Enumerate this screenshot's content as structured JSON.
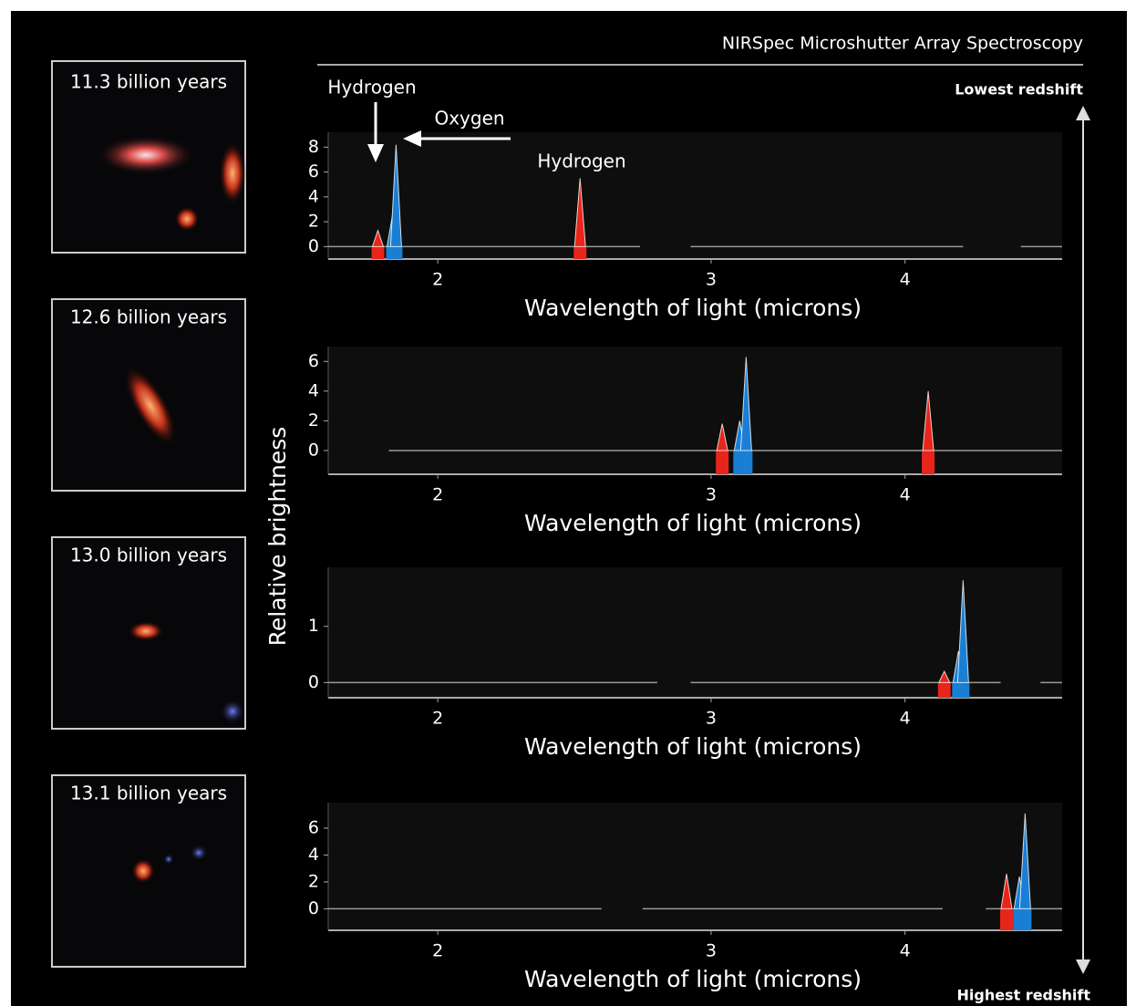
{
  "header": {
    "title": "NIRSpec Microshutter Array Spectroscopy",
    "top_label": "Lowest redshift",
    "bottom_label": "Highest redshift",
    "y_label": "Relative brightness"
  },
  "images": [
    {
      "label": "11.3 billion years"
    },
    {
      "label": "12.6 billion years"
    },
    {
      "label": "13.0 billion years"
    },
    {
      "label": "13.1 billion years"
    }
  ],
  "chart_data": [
    {
      "type": "spectrum",
      "xlabel": "Wavelength of light (microns)",
      "xlog": true,
      "xlim": [
        1.7,
        5.05
      ],
      "xticks": [
        2,
        3,
        4
      ],
      "ylim": [
        -1,
        9.2
      ],
      "yticks": [
        0,
        2,
        4,
        6,
        8
      ],
      "annotations": [
        "Hydrogen",
        "Oxygen",
        "Hydrogen"
      ],
      "continuum": [
        [
          1.7,
          2.7
        ],
        [
          2.91,
          4.36
        ],
        [
          4.75,
          5.05
        ]
      ],
      "peaks": [
        {
          "x": 1.83,
          "value": 1.3,
          "color": "#e8251b"
        },
        {
          "x": 1.87,
          "value": 2.5,
          "color": "#1a7fd4"
        },
        {
          "x": 1.88,
          "value": 8.2,
          "color": "#1a7fd4"
        },
        {
          "x": 2.47,
          "value": 5.5,
          "color": "#e8251b"
        }
      ]
    },
    {
      "type": "spectrum",
      "xlabel": "Wavelength of light (microns)",
      "xlog": true,
      "xlim": [
        1.7,
        5.05
      ],
      "xticks": [
        2,
        3,
        4
      ],
      "ylim": [
        -1.6,
        7
      ],
      "yticks": [
        0,
        2,
        4,
        6
      ],
      "continuum": [
        [
          1.86,
          5.05
        ]
      ],
      "peaks": [
        {
          "x": 3.05,
          "value": 1.8,
          "color": "#e8251b"
        },
        {
          "x": 3.13,
          "value": 2,
          "color": "#1a7fd4"
        },
        {
          "x": 3.16,
          "value": 6.3,
          "color": "#1a7fd4"
        },
        {
          "x": 4.14,
          "value": 4,
          "color": "#e8251b"
        }
      ]
    },
    {
      "type": "spectrum",
      "xlabel": "Wavelength of light (microns)",
      "xlog": true,
      "xlim": [
        1.7,
        5.05
      ],
      "xticks": [
        2,
        3,
        4
      ],
      "ylim": [
        -0.27,
        2.05
      ],
      "yticks": [
        0,
        1
      ],
      "continuum": [
        [
          1.7,
          2.77
        ],
        [
          2.91,
          4.61
        ],
        [
          4.89,
          5.05
        ]
      ],
      "peaks": [
        {
          "x": 4.24,
          "value": 0.2,
          "color": "#e8251b"
        },
        {
          "x": 4.33,
          "value": 0.56,
          "color": "#1a7fd4"
        },
        {
          "x": 4.36,
          "value": 1.82,
          "color": "#1a7fd4"
        }
      ]
    },
    {
      "type": "spectrum",
      "xlabel": "Wavelength of light (microns)",
      "xlog": true,
      "xlim": [
        1.7,
        5.05
      ],
      "xticks": [
        2,
        3,
        4
      ],
      "ylim": [
        -1.6,
        7.9
      ],
      "yticks": [
        0,
        2,
        4,
        6
      ],
      "continuum": [
        [
          1.7,
          2.55
        ],
        [
          2.71,
          4.23
        ],
        [
          4.51,
          5.05
        ]
      ],
      "peaks": [
        {
          "x": 4.65,
          "value": 2.6,
          "color": "#e8251b"
        },
        {
          "x": 4.74,
          "value": 2.4,
          "color": "#1a7fd4"
        },
        {
          "x": 4.78,
          "value": 7.1,
          "color": "#1a7fd4"
        }
      ]
    }
  ]
}
